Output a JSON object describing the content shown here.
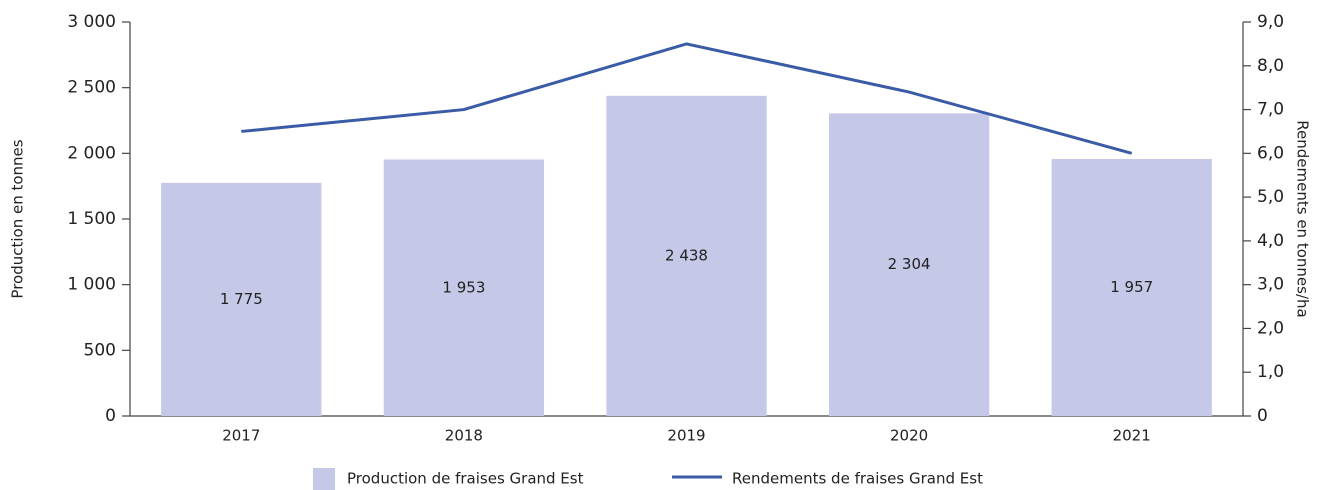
{
  "chart_data": {
    "type": "bar",
    "y_label": "Production en tonnes",
    "y2_label": "Rendements en tonnes/ha",
    "categories": [
      "2017",
      "2018",
      "2019",
      "2020",
      "2021"
    ],
    "series": [
      {
        "name": "Production de fraises Grand Est",
        "type": "bar",
        "color": "#c5c8e6",
        "values": [
          1775,
          1953,
          2438,
          2304,
          1957
        ],
        "value_labels": [
          "1 775",
          "1 953",
          "2 438",
          "2 304",
          "1 957"
        ]
      },
      {
        "name": "Rendements de fraises Grand Est",
        "type": "line",
        "axis": "y2",
        "color": "#3a5ba5",
        "values": [
          6.5,
          7.0,
          8.5,
          7.4,
          6.0
        ]
      }
    ],
    "ylim": [
      0,
      3000
    ],
    "yticks": [
      0,
      500,
      {
        "value": 1000,
        "label": "1 000"
      },
      {
        "value": 1500,
        "label": "1 500"
      },
      {
        "value": 2000,
        "label": "2 000"
      },
      {
        "value": 2500,
        "label": "2 500"
      },
      {
        "value": 3000,
        "label": "3 000"
      }
    ],
    "y2lim": [
      0,
      9
    ],
    "y2ticks": [
      0,
      {
        "value": 1,
        "label": "1,0"
      },
      {
        "value": 2,
        "label": "2,0"
      },
      {
        "value": 3,
        "label": "3,0"
      },
      {
        "value": 4,
        "label": "4,0"
      },
      {
        "value": 5,
        "label": "5,0"
      },
      {
        "value": 6,
        "label": "6,0"
      },
      {
        "value": 7,
        "label": "7,0"
      },
      {
        "value": 8,
        "label": "8,0"
      },
      {
        "value": 9,
        "label": "9,0"
      }
    ],
    "grid": false,
    "legend": "bottom"
  }
}
